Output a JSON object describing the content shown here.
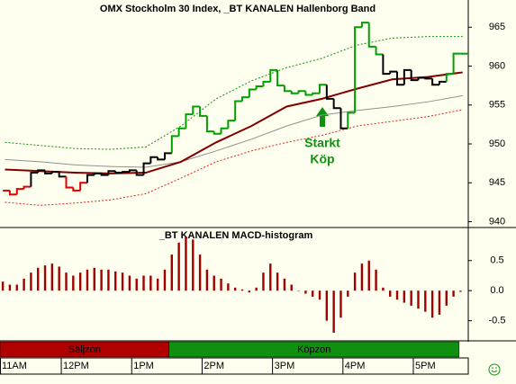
{
  "time_axis": {
    "xlim": [
      11.13,
      17.78
    ],
    "xticks": [
      {
        "value": 11,
        "label": "11AM"
      },
      {
        "value": 12,
        "label": "12PM"
      },
      {
        "value": 13,
        "label": "1PM"
      },
      {
        "value": 14,
        "label": "2PM"
      },
      {
        "value": 15,
        "label": "3PM"
      },
      {
        "value": 16,
        "label": "4PM"
      },
      {
        "value": 17,
        "label": "5PM"
      }
    ]
  },
  "zones": [
    {
      "label": "Säljzon",
      "start": 11.13,
      "end": 13.53,
      "color": "#b00000"
    },
    {
      "label": "Köpzon",
      "start": 13.53,
      "end": 17.65,
      "color": "#109010"
    }
  ],
  "chart_data": [
    {
      "type": "step",
      "title": "OMX Stockholm 30 Index, _BT KANALEN Hallenborg Band",
      "ylim": [
        939.25,
        968.5
      ],
      "yticks": [
        940,
        945,
        950,
        955,
        960,
        965
      ],
      "annotations": [
        "Starkt",
        "Köp"
      ],
      "x": [
        11.17,
        11.27,
        11.37,
        11.47,
        11.57,
        11.67,
        11.77,
        11.87,
        11.97,
        12.07,
        12.17,
        12.27,
        12.37,
        12.47,
        12.57,
        12.67,
        12.77,
        12.87,
        12.97,
        13.07,
        13.17,
        13.27,
        13.37,
        13.47,
        13.57,
        13.67,
        13.77,
        13.87,
        13.97,
        14.07,
        14.17,
        14.27,
        14.37,
        14.47,
        14.57,
        14.67,
        14.77,
        14.87,
        14.97,
        15.07,
        15.17,
        15.27,
        15.37,
        15.47,
        15.57,
        15.67,
        15.77,
        15.87,
        15.97,
        16.07,
        16.17,
        16.27,
        16.37,
        16.47,
        16.57,
        16.67,
        16.77,
        16.87,
        16.97,
        17.07,
        17.17,
        17.27,
        17.37,
        17.47,
        17.57,
        17.67
      ],
      "values": [
        944.0,
        943.5,
        944.2,
        944.5,
        946.3,
        946.6,
        946.2,
        946.4,
        945.8,
        944.4,
        944.0,
        945.0,
        946.0,
        946.2,
        946.0,
        946.5,
        946.3,
        946.4,
        946.6,
        946.0,
        947.5,
        948.3,
        948.0,
        948.8,
        951.0,
        952.0,
        953.8,
        954.8,
        953.6,
        951.6,
        951.3,
        952.0,
        953.0,
        955.5,
        956.0,
        957.0,
        957.4,
        958.0,
        959.5,
        957.5,
        956.8,
        956.5,
        956.8,
        956.3,
        956.5,
        957.6,
        955.8,
        954.6,
        952.0,
        954.0,
        965.0,
        965.6,
        962.5,
        961.5,
        959.0,
        959.3,
        957.6,
        959.5,
        958.2,
        958.5,
        958.4,
        957.6,
        958.0,
        959.0,
        961.6,
        961.6
      ],
      "bar_colors": [
        "#e00000",
        "#e00000",
        "#e00000",
        "#e00000",
        "#000000",
        "#000000",
        "#000000",
        "#000000",
        "#000000",
        "#e00000",
        "#e00000",
        "#e00000",
        "#000000",
        "#000000",
        "#000000",
        "#000000",
        "#000000",
        "#000000",
        "#000000",
        "#000000",
        "#000000",
        "#000000",
        "#000000",
        "#000000",
        "#00a000",
        "#00a000",
        "#00a000",
        "#00a000",
        "#00a000",
        "#00a000",
        "#00a000",
        "#00a000",
        "#00a000",
        "#00a000",
        "#00a000",
        "#00a000",
        "#00a000",
        "#00a000",
        "#00a000",
        "#00a000",
        "#00a000",
        "#00a000",
        "#00a000",
        "#00a000",
        "#00a000",
        "#00a000",
        "#000000",
        "#000000",
        "#000000",
        "#00a000",
        "#00a000",
        "#00a000",
        "#00a000",
        "#00a000",
        "#000000",
        "#000000",
        "#000000",
        "#000000",
        "#000000",
        "#000000",
        "#000000",
        "#000000",
        "#000000",
        "#00a000",
        "#00a000",
        "#00a000"
      ],
      "lines": [
        {
          "color": "#909090",
          "width": 1,
          "dash": false,
          "x": [
            11.2,
            11.7,
            12.2,
            12.7,
            13.2,
            13.7,
            14.2,
            14.7,
            15.2,
            15.7,
            16.2,
            16.7,
            17.2,
            17.7
          ],
          "values": [
            948.0,
            947.7,
            947.3,
            947.1,
            947.0,
            947.7,
            949.1,
            950.6,
            952.3,
            953.7,
            954.3,
            954.8,
            955.4,
            956.2
          ]
        },
        {
          "color": "#109010",
          "width": 1,
          "dash": true,
          "x": [
            11.2,
            11.7,
            12.2,
            12.7,
            13.2,
            13.7,
            14.2,
            14.7,
            15.2,
            15.7,
            16.2,
            16.7,
            17.2,
            17.7
          ],
          "values": [
            950.2,
            949.8,
            949.4,
            949.3,
            949.6,
            952.3,
            955.8,
            958.1,
            959.8,
            961.0,
            962.7,
            963.6,
            963.8,
            963.8
          ]
        },
        {
          "color": "#e02020",
          "width": 1,
          "dash": true,
          "x": [
            11.2,
            11.7,
            12.2,
            12.7,
            13.2,
            13.7,
            14.2,
            14.7,
            15.2,
            15.7,
            16.2,
            16.7,
            17.2,
            17.7
          ],
          "values": [
            942.5,
            942.1,
            942.4,
            942.8,
            943.6,
            945.6,
            947.7,
            949.1,
            950.2,
            951.1,
            952.3,
            952.9,
            953.5,
            954.4
          ]
        },
        {
          "color": "#800000",
          "width": 2,
          "dash": false,
          "x": [
            11.2,
            11.7,
            12.2,
            12.7,
            13.2,
            13.7,
            14.2,
            14.7,
            15.2,
            15.7,
            16.2,
            16.7,
            17.2,
            17.7
          ],
          "values": [
            946.7,
            946.5,
            946.3,
            946.2,
            946.3,
            947.7,
            950.2,
            952.3,
            954.8,
            955.8,
            957.1,
            958.3,
            958.6,
            959.2
          ]
        }
      ]
    },
    {
      "type": "bar",
      "title": "_BT KANALEN MACD-histogram",
      "color": "#a00000",
      "ylim": [
        -0.82,
        1.05
      ],
      "yticks": [
        0.5,
        {
          "value": 0,
          "label": "0.0"
        },
        -0.5
      ],
      "x": [
        11.17,
        11.27,
        11.37,
        11.47,
        11.57,
        11.67,
        11.77,
        11.87,
        11.97,
        12.07,
        12.17,
        12.27,
        12.37,
        12.47,
        12.57,
        12.67,
        12.77,
        12.87,
        12.97,
        13.07,
        13.17,
        13.27,
        13.37,
        13.47,
        13.57,
        13.67,
        13.77,
        13.87,
        13.97,
        14.07,
        14.17,
        14.27,
        14.37,
        14.47,
        14.57,
        14.67,
        14.77,
        14.87,
        14.97,
        15.07,
        15.17,
        15.27,
        15.37,
        15.47,
        15.57,
        15.67,
        15.77,
        15.87,
        15.97,
        16.07,
        16.17,
        16.27,
        16.37,
        16.47,
        16.57,
        16.67,
        16.77,
        16.87,
        16.97,
        17.07,
        17.17,
        17.27,
        17.37,
        17.47,
        17.57,
        17.67
      ],
      "values": [
        0.15,
        0.1,
        0.1,
        0.2,
        0.3,
        0.38,
        0.42,
        0.45,
        0.4,
        0.3,
        0.25,
        0.3,
        0.35,
        0.38,
        0.35,
        0.35,
        0.32,
        0.3,
        0.25,
        0.2,
        0.25,
        0.25,
        0.2,
        0.35,
        0.6,
        0.8,
        0.9,
        0.85,
        0.6,
        0.35,
        0.25,
        0.2,
        0.12,
        0.05,
        0.02,
        -0.03,
        0.05,
        0.3,
        0.45,
        0.3,
        0.2,
        0.1,
        0.0,
        -0.05,
        -0.1,
        -0.15,
        -0.5,
        -0.7,
        -0.45,
        -0.1,
        0.3,
        0.45,
        0.5,
        0.35,
        0.05,
        -0.1,
        -0.15,
        -0.2,
        -0.25,
        -0.3,
        -0.35,
        -0.45,
        -0.4,
        -0.25,
        -0.1,
        -0.02
      ]
    }
  ]
}
